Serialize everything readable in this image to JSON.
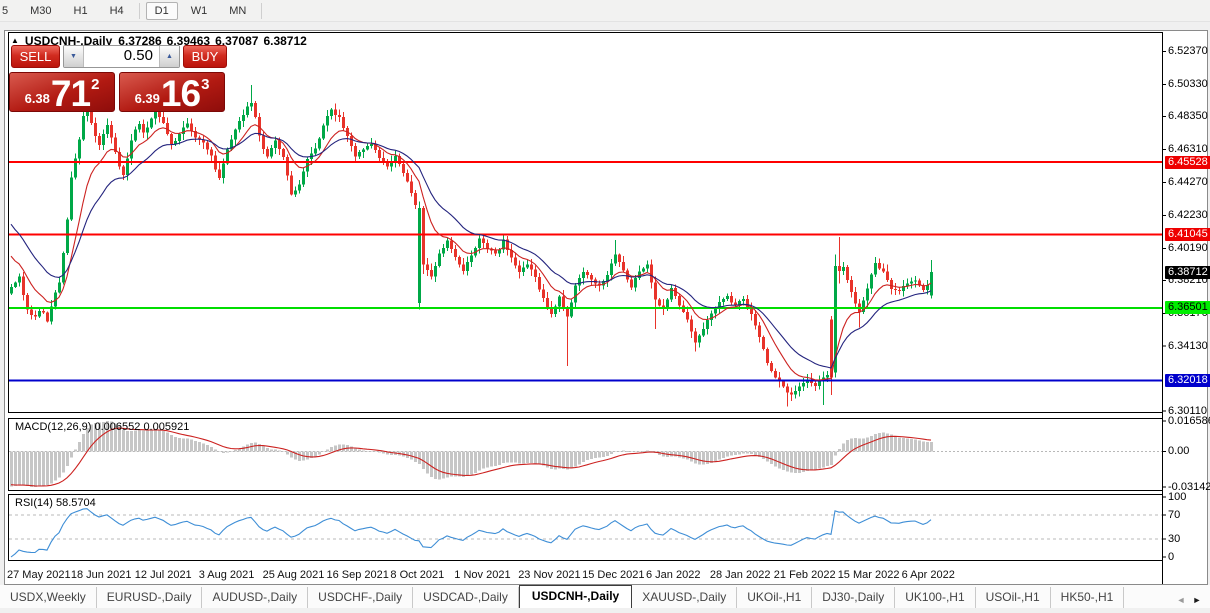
{
  "toolbar": {
    "timeframes": [
      "5",
      "M30",
      "H1",
      "H4",
      "D1",
      "W1",
      "MN"
    ],
    "active": "D1"
  },
  "icons": {
    "panel_toggle": "▲",
    "spin_down": "▼",
    "spin_up": "▲",
    "tab_scroll_left": "◄",
    "tab_scroll_right": "►"
  },
  "chart": {
    "title": "USDCNH-,Daily",
    "open": "6.37286",
    "high": "6.39463",
    "low": "6.37087",
    "close": "6.38712"
  },
  "trade_panel": {
    "sell_label": "SELL",
    "buy_label": "BUY",
    "volume": "0.50",
    "sell": {
      "base": "6.38",
      "big": "71",
      "sup": "2"
    },
    "buy": {
      "base": "6.39",
      "big": "16",
      "sup": "3"
    }
  },
  "indicators": {
    "macd": {
      "label": "MACD(12,26,9)",
      "value_main": "0.006552",
      "value_signal": "0.005921",
      "axis_max": "0.016586",
      "axis_zero": "0.00",
      "axis_min": "-0.031421",
      "fast": 12,
      "slow": 26,
      "signal": 9
    },
    "rsi": {
      "label": "RSI(14)",
      "value": "58.5704",
      "period": 14,
      "axis": [
        100,
        70,
        30,
        0
      ],
      "levels": [
        70,
        30
      ]
    }
  },
  "tabs": {
    "items": [
      "USDX,Weekly",
      "EURUSD-,Daily",
      "AUDUSD-,Daily",
      "USDCHF-,Daily",
      "USDCAD-,Daily",
      "USDCNH-,Daily",
      "XAUUSD-,Daily",
      "UKOil-,H1",
      "DJ30-,Daily",
      "UK100-,H1",
      "USOil-,H1",
      "HK50-,H1"
    ],
    "active": "USDCNH-,Daily"
  },
  "colors": {
    "bull": "#00a847",
    "bear": "#e8332a",
    "wick_bull": "#00a847",
    "wick_bear": "#e8332a",
    "ma_fast": "#cc2220",
    "ma_slow": "#24247e",
    "hline_red": "#ff0000",
    "hline_green": "#00dd00",
    "hline_blue": "#0000cc",
    "label_red_bg": "#ee0000",
    "label_green_bg": "#00ee00",
    "label_blue_bg": "#0000cc",
    "label_current_bg": "#000000",
    "macd_hist": "#c6c6c6",
    "macd_signal": "#cc2220",
    "rsi_line": "#3e8ed6",
    "level_dash": "#b8b8b8"
  },
  "chart_data": {
    "type": "candlestick",
    "symbol": "USDCNH-",
    "period": "Daily",
    "last_candle": {
      "open": 6.37286,
      "high": 6.39463,
      "low": 6.37087,
      "close": 6.38712
    },
    "price_range": [
      6.3006,
      6.5358
    ],
    "y_ticks": [
      "6.52370",
      "6.50330",
      "6.48350",
      "6.46310",
      "6.44270",
      "6.42230",
      "6.40190",
      "6.38210",
      "6.36170",
      "6.34130",
      "6.30110"
    ],
    "hlines": [
      {
        "price": 6.45528,
        "label": "6.45528",
        "color": "red"
      },
      {
        "price": 6.41045,
        "label": "6.41045",
        "color": "red"
      },
      {
        "price": 6.36501,
        "label": "6.36501",
        "color": "green"
      },
      {
        "price": 6.32018,
        "label": "6.32018",
        "color": "blue"
      }
    ],
    "current_price": {
      "value": 6.38712,
      "label": "6.38712"
    },
    "x_labels": [
      "27 May 2021",
      "18 Jun 2021",
      "12 Jul 2021",
      "3 Aug 2021",
      "25 Aug 2021",
      "16 Sep 2021",
      "8 Oct 2021",
      "1 Nov 2021",
      "23 Nov 2021",
      "15 Dec 2021",
      "6 Jan 2022",
      "28 Jan 2022",
      "21 Feb 2022",
      "15 Mar 2022",
      "6 Apr 2022"
    ],
    "close_anchors": [
      [
        6,
        6.378
      ],
      [
        14,
        6.385
      ],
      [
        20,
        6.366
      ],
      [
        28,
        6.359
      ],
      [
        36,
        6.364
      ],
      [
        42,
        6.357
      ],
      [
        48,
        6.371
      ],
      [
        54,
        6.381
      ],
      [
        58,
        6.399
      ],
      [
        62,
        6.42
      ],
      [
        66,
        6.446
      ],
      [
        70,
        6.458
      ],
      [
        74,
        6.47
      ],
      [
        78,
        6.483
      ],
      [
        82,
        6.488
      ],
      [
        86,
        6.48
      ],
      [
        90,
        6.471
      ],
      [
        94,
        6.466
      ],
      [
        98,
        6.472
      ],
      [
        102,
        6.478
      ],
      [
        106,
        6.47
      ],
      [
        110,
        6.462
      ],
      [
        114,
        6.453
      ],
      [
        118,
        6.448
      ],
      [
        122,
        6.458
      ],
      [
        126,
        6.469
      ],
      [
        130,
        6.476
      ],
      [
        134,
        6.479
      ],
      [
        138,
        6.474
      ],
      [
        142,
        6.477
      ],
      [
        146,
        6.482
      ],
      [
        150,
        6.487
      ],
      [
        154,
        6.483
      ],
      [
        158,
        6.479
      ],
      [
        162,
        6.472
      ],
      [
        166,
        6.467
      ],
      [
        170,
        6.469
      ],
      [
        174,
        6.473
      ],
      [
        178,
        6.476
      ],
      [
        182,
        6.479
      ],
      [
        186,
        6.475
      ],
      [
        190,
        6.471
      ],
      [
        194,
        6.469
      ],
      [
        198,
        6.467
      ],
      [
        202,
        6.463
      ],
      [
        206,
        6.459
      ],
      [
        210,
        6.451
      ],
      [
        214,
        6.445
      ],
      [
        218,
        6.454
      ],
      [
        222,
        6.463
      ],
      [
        226,
        6.469
      ],
      [
        230,
        6.475
      ],
      [
        234,
        6.48
      ],
      [
        238,
        6.485
      ],
      [
        242,
        6.489
      ],
      [
        246,
        6.492
      ],
      [
        250,
        6.483
      ],
      [
        254,
        6.471
      ],
      [
        258,
        6.464
      ],
      [
        262,
        6.459
      ],
      [
        266,
        6.464
      ],
      [
        270,
        6.468
      ],
      [
        274,
        6.463
      ],
      [
        278,
        6.458
      ],
      [
        282,
        6.447
      ],
      [
        286,
        6.436
      ],
      [
        290,
        6.438
      ],
      [
        294,
        6.442
      ],
      [
        298,
        6.45
      ],
      [
        302,
        6.458
      ],
      [
        306,
        6.46
      ],
      [
        310,
        6.463
      ],
      [
        314,
        6.47
      ],
      [
        318,
        6.478
      ],
      [
        322,
        6.483
      ],
      [
        326,
        6.487
      ],
      [
        330,
        6.485
      ],
      [
        334,
        6.483
      ],
      [
        338,
        6.477
      ],
      [
        342,
        6.471
      ],
      [
        346,
        6.465
      ],
      [
        350,
        6.459
      ],
      [
        354,
        6.461
      ],
      [
        358,
        6.463
      ],
      [
        362,
        6.465
      ],
      [
        366,
        6.467
      ],
      [
        370,
        6.462
      ],
      [
        374,
        6.458
      ],
      [
        378,
        6.455
      ],
      [
        382,
        6.453
      ],
      [
        386,
        6.456
      ],
      [
        390,
        6.459
      ],
      [
        394,
        6.454
      ],
      [
        398,
        6.449
      ],
      [
        402,
        6.443
      ],
      [
        406,
        6.437
      ],
      [
        410,
        6.428
      ],
      [
        414,
        6.427
      ],
      [
        418,
        6.392
      ],
      [
        422,
        6.388
      ],
      [
        426,
        6.385
      ],
      [
        430,
        6.391
      ],
      [
        434,
        6.398
      ],
      [
        438,
        6.402
      ],
      [
        442,
        6.407
      ],
      [
        446,
        6.402
      ],
      [
        450,
        6.397
      ],
      [
        454,
        6.392
      ],
      [
        458,
        6.388
      ],
      [
        462,
        6.393
      ],
      [
        466,
        6.398
      ],
      [
        470,
        6.403
      ],
      [
        474,
        6.408
      ],
      [
        478,
        6.405
      ],
      [
        482,
        6.402
      ],
      [
        486,
        6.4
      ],
      [
        490,
        6.398
      ],
      [
        494,
        6.402
      ],
      [
        498,
        6.407
      ],
      [
        502,
        6.401
      ],
      [
        506,
        6.396
      ],
      [
        510,
        6.392
      ],
      [
        514,
        6.388
      ],
      [
        518,
        6.39
      ],
      [
        522,
        6.392
      ],
      [
        526,
        6.388
      ],
      [
        530,
        6.384
      ],
      [
        534,
        6.377
      ],
      [
        538,
        6.371
      ],
      [
        542,
        6.366
      ],
      [
        546,
        6.361
      ],
      [
        550,
        6.366
      ],
      [
        554,
        6.372
      ],
      [
        558,
        6.365
      ],
      [
        562,
        6.359
      ],
      [
        566,
        6.369
      ],
      [
        570,
        6.379
      ],
      [
        574,
        6.384
      ],
      [
        578,
        6.388
      ],
      [
        582,
        6.385
      ],
      [
        586,
        6.382
      ],
      [
        590,
        6.38
      ],
      [
        594,
        6.378
      ],
      [
        598,
        6.382
      ],
      [
        602,
        6.386
      ],
      [
        606,
        6.392
      ],
      [
        610,
        6.398
      ],
      [
        614,
        6.393
      ],
      [
        618,
        6.388
      ],
      [
        622,
        6.383
      ],
      [
        626,
        6.378
      ],
      [
        630,
        6.383
      ],
      [
        634,
        6.388
      ],
      [
        638,
        6.39
      ],
      [
        642,
        6.392
      ],
      [
        646,
        6.381
      ],
      [
        650,
        6.37
      ],
      [
        654,
        6.367
      ],
      [
        658,
        6.365
      ],
      [
        662,
        6.371
      ],
      [
        666,
        6.377
      ],
      [
        670,
        6.372
      ],
      [
        674,
        6.367
      ],
      [
        678,
        6.362
      ],
      [
        682,
        6.357
      ],
      [
        686,
        6.35
      ],
      [
        690,
        6.344
      ],
      [
        694,
        6.348
      ],
      [
        698,
        6.352
      ],
      [
        702,
        6.357
      ],
      [
        706,
        6.362
      ],
      [
        710,
        6.365
      ],
      [
        714,
        6.368
      ],
      [
        718,
        6.37
      ],
      [
        722,
        6.372
      ],
      [
        726,
        6.369
      ],
      [
        730,
        6.366
      ],
      [
        734,
        6.369
      ],
      [
        738,
        6.371
      ],
      [
        742,
        6.366
      ],
      [
        746,
        6.361
      ],
      [
        750,
        6.354
      ],
      [
        754,
        6.347
      ],
      [
        758,
        6.339
      ],
      [
        762,
        6.331
      ],
      [
        766,
        6.326
      ],
      [
        770,
        6.322
      ],
      [
        774,
        6.319
      ],
      [
        778,
        6.316
      ],
      [
        782,
        6.313
      ],
      [
        786,
        6.312
      ],
      [
        790,
        6.314
      ],
      [
        794,
        6.317
      ],
      [
        798,
        6.319
      ],
      [
        802,
        6.321
      ],
      [
        806,
        6.319
      ],
      [
        810,
        6.317
      ],
      [
        814,
        6.319
      ],
      [
        818,
        6.322
      ],
      [
        822,
        6.323
      ],
      [
        826,
        6.322
      ],
      [
        830,
        6.391
      ],
      [
        834,
        6.388
      ],
      [
        838,
        6.39
      ],
      [
        842,
        6.382
      ],
      [
        846,
        6.375
      ],
      [
        850,
        6.368
      ],
      [
        854,
        6.362
      ],
      [
        858,
        6.37
      ],
      [
        862,
        6.377
      ],
      [
        866,
        6.385
      ],
      [
        870,
        6.392
      ],
      [
        874,
        6.39
      ],
      [
        878,
        6.387
      ],
      [
        882,
        6.382
      ],
      [
        886,
        6.377
      ],
      [
        890,
        6.376
      ],
      [
        894,
        6.375
      ],
      [
        898,
        6.378
      ],
      [
        902,
        6.38
      ],
      [
        906,
        6.381
      ],
      [
        910,
        6.382
      ],
      [
        914,
        6.379
      ],
      [
        918,
        6.376
      ],
      [
        922,
        6.379
      ],
      [
        926,
        6.38712
      ]
    ],
    "overrides": {
      "82": {
        "h": 6.494
      },
      "150": {
        "h": 6.5
      },
      "246": {
        "h": 6.503
      },
      "414": {
        "o": 6.368,
        "h": 6.431,
        "l": 6.364,
        "c": 6.427
      },
      "418": {
        "o": 6.427,
        "h": 6.428,
        "l": 6.386,
        "c": 6.392
      },
      "562": {
        "l": 6.329
      },
      "610": {
        "h": 6.407
      },
      "650": {
        "l": 6.352
      },
      "690": {
        "l": 6.338
      },
      "782": {
        "l": 6.304
      },
      "818": {
        "l": 6.305
      },
      "826": {
        "o": 6.358,
        "h": 6.36,
        "l": 6.311,
        "c": 6.322
      },
      "830": {
        "o": 6.325,
        "h": 6.398,
        "l": 6.322,
        "c": 6.391
      },
      "834": {
        "o": 6.391,
        "h": 6.409,
        "l": 6.38,
        "c": 6.388
      },
      "854": {
        "l": 6.353
      },
      "926": {
        "o": 6.37286,
        "h": 6.39463,
        "l": 6.37087,
        "c": 6.38712
      }
    },
    "preroll_anchors": [
      [
        -170,
        6.523
      ],
      [
        -130,
        6.505
      ],
      [
        -90,
        6.468
      ],
      [
        -60,
        6.44
      ],
      [
        -30,
        6.41
      ],
      [
        -8,
        6.388
      ]
    ],
    "ma_fast_period": 10,
    "ma_slow_period": 21
  }
}
